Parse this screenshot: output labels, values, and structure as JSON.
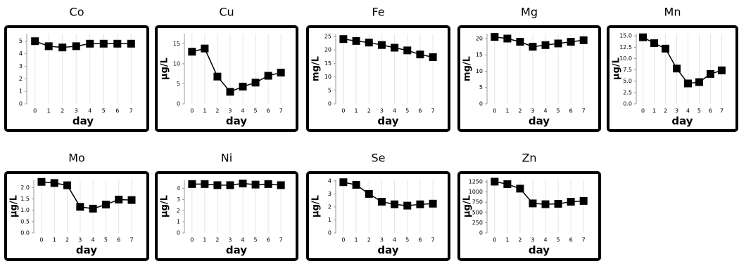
{
  "chart_data": [
    {
      "type": "line",
      "title": "Co",
      "xlabel": "day",
      "x": [
        0,
        1,
        2,
        3,
        4,
        5,
        6,
        7
      ],
      "xlim": [
        -0.6,
        7.6
      ],
      "xticks": [
        0,
        1,
        2,
        3,
        4,
        5,
        6,
        7
      ],
      "ylim": [
        0,
        5.6
      ],
      "yticks": [
        0,
        1,
        2,
        3,
        4,
        5
      ],
      "grid": "x",
      "series": [
        {
          "color": "#000000",
          "values": [
            5.0,
            4.6,
            4.5,
            4.6,
            4.8,
            4.8,
            4.8,
            4.8
          ]
        }
      ]
    },
    {
      "type": "line",
      "title": "Cu",
      "xlabel": "day",
      "ylabel": "µg/L",
      "x": [
        0,
        1,
        2,
        3,
        4,
        5,
        6,
        7
      ],
      "xlim": [
        -0.6,
        7.6
      ],
      "xticks": [
        0,
        1,
        2,
        3,
        4,
        5,
        6,
        7
      ],
      "ylim": [
        0,
        17.5
      ],
      "yticks": [
        0,
        5,
        10,
        15
      ],
      "grid": "x",
      "series": [
        {
          "color": "#000000",
          "values": [
            13.0,
            13.8,
            6.8,
            3.0,
            4.3,
            5.3,
            7.0,
            7.8
          ]
        }
      ]
    },
    {
      "type": "line",
      "title": "Fe",
      "xlabel": "day",
      "ylabel": "mg/L",
      "x": [
        0,
        1,
        2,
        3,
        4,
        5,
        6,
        7
      ],
      "xlim": [
        -0.6,
        7.6
      ],
      "xticks": [
        0,
        1,
        2,
        3,
        4,
        5,
        6,
        7
      ],
      "ylim": [
        0,
        26
      ],
      "yticks": [
        0,
        5,
        10,
        15,
        20,
        25
      ],
      "grid": "x",
      "series": [
        {
          "color": "#000000",
          "values": [
            24.0,
            23.3,
            22.7,
            21.8,
            20.8,
            19.8,
            18.3,
            17.3
          ]
        }
      ]
    },
    {
      "type": "line",
      "title": "Mg",
      "xlabel": "day",
      "ylabel": "mg/L",
      "x": [
        0,
        1,
        2,
        3,
        4,
        5,
        6,
        7
      ],
      "xlim": [
        -0.6,
        7.6
      ],
      "xticks": [
        0,
        1,
        2,
        3,
        4,
        5,
        6,
        7
      ],
      "ylim": [
        0,
        21.5
      ],
      "yticks": [
        0,
        5,
        10,
        15,
        20
      ],
      "grid": "x",
      "series": [
        {
          "color": "#000000",
          "values": [
            20.5,
            20.0,
            19.0,
            17.5,
            18.0,
            18.5,
            19.0,
            19.5
          ]
        }
      ]
    },
    {
      "type": "line",
      "title": "Mn",
      "xlabel": "day",
      "ylabel": "µg/L",
      "x": [
        0,
        1,
        2,
        3,
        4,
        5,
        6,
        7
      ],
      "xlim": [
        -0.6,
        7.6
      ],
      "xticks": [
        0,
        1,
        2,
        3,
        4,
        5,
        6,
        7
      ],
      "ylim": [
        0,
        15.5
      ],
      "yticks": [
        {
          "value": 0,
          "label": "0.0"
        },
        {
          "value": 2.5,
          "label": "2.5"
        },
        {
          "value": 5,
          "label": "5.0"
        },
        {
          "value": 7.5,
          "label": "7.5"
        },
        {
          "value": 10,
          "label": "10.0"
        },
        {
          "value": 12.5,
          "label": "12.5"
        },
        {
          "value": 15,
          "label": "15.0"
        }
      ],
      "grid": "x",
      "series": [
        {
          "color": "#000000",
          "values": [
            14.7,
            13.4,
            12.2,
            7.8,
            4.5,
            4.8,
            6.6,
            7.4
          ]
        }
      ]
    },
    {
      "type": "line",
      "title": "Mo",
      "xlabel": "day",
      "ylabel": "µg/L",
      "x": [
        0,
        1,
        2,
        3,
        4,
        5,
        6,
        7
      ],
      "xlim": [
        -0.6,
        7.6
      ],
      "xticks": [
        0,
        1,
        2,
        3,
        4,
        5,
        6,
        7
      ],
      "ylim": [
        0,
        2.35
      ],
      "yticks": [
        {
          "value": 0,
          "label": "0.0"
        },
        {
          "value": 0.5,
          "label": "0.5"
        },
        {
          "value": 1,
          "label": "1.0"
        },
        {
          "value": 1.5,
          "label": "1.5"
        },
        {
          "value": 2,
          "label": "2.0"
        }
      ],
      "grid": "x",
      "series": [
        {
          "color": "#000000",
          "values": [
            2.25,
            2.2,
            2.1,
            1.15,
            1.07,
            1.25,
            1.47,
            1.45
          ]
        }
      ]
    },
    {
      "type": "line",
      "title": "Ni",
      "xlabel": "day",
      "ylabel": "µg/L",
      "x": [
        0,
        1,
        2,
        3,
        4,
        5,
        6,
        7
      ],
      "xlim": [
        -0.6,
        7.6
      ],
      "xticks": [
        0,
        1,
        2,
        3,
        4,
        5,
        6,
        7
      ],
      "ylim": [
        0,
        4.8
      ],
      "yticks": [
        0,
        1,
        2,
        3,
        4
      ],
      "grid": "x",
      "series": [
        {
          "color": "#000000",
          "values": [
            4.4,
            4.4,
            4.3,
            4.3,
            4.45,
            4.35,
            4.4,
            4.3
          ]
        }
      ]
    },
    {
      "type": "line",
      "title": "Se",
      "xlabel": "day",
      "ylabel": "µg/L",
      "x": [
        0,
        1,
        2,
        3,
        4,
        5,
        6,
        7
      ],
      "xlim": [
        -0.6,
        7.6
      ],
      "xticks": [
        0,
        1,
        2,
        3,
        4,
        5,
        6,
        7
      ],
      "ylim": [
        0,
        4.1
      ],
      "yticks": [
        0,
        1,
        2,
        3,
        4
      ],
      "grid": "x",
      "series": [
        {
          "color": "#000000",
          "values": [
            3.9,
            3.7,
            3.0,
            2.4,
            2.2,
            2.1,
            2.2,
            2.25
          ]
        }
      ]
    },
    {
      "type": "line",
      "title": "Zn",
      "xlabel": "day",
      "ylabel": "µg/L",
      "x": [
        0,
        1,
        2,
        3,
        4,
        5,
        6,
        7
      ],
      "xlim": [
        -0.6,
        7.6
      ],
      "xticks": [
        0,
        1,
        2,
        3,
        4,
        5,
        6,
        7
      ],
      "ylim": [
        0,
        1300
      ],
      "yticks": [
        0,
        250,
        500,
        750,
        1000,
        1250
      ],
      "grid": "x",
      "series": [
        {
          "color": "#000000",
          "values": [
            1250,
            1190,
            1080,
            720,
            700,
            710,
            760,
            780
          ]
        }
      ]
    }
  ]
}
